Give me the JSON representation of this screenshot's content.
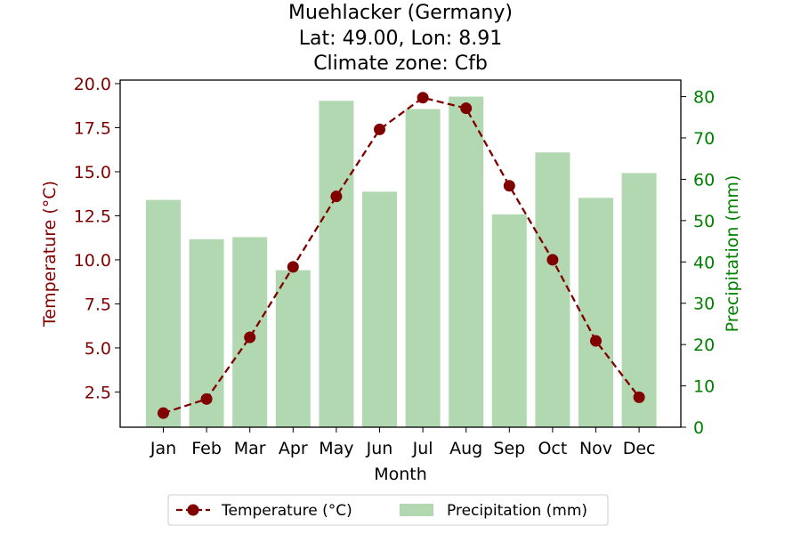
{
  "chart_data": {
    "type": "bar+line",
    "title_lines": [
      "Muehlacker (Germany)",
      "Lat: 49.00, Lon: 8.91",
      "Climate zone: Cfb"
    ],
    "xlabel": "Month",
    "categories": [
      "Jan",
      "Feb",
      "Mar",
      "Apr",
      "May",
      "Jun",
      "Jul",
      "Aug",
      "Sep",
      "Oct",
      "Nov",
      "Dec"
    ],
    "temperature": {
      "name": "Temperature (°C)",
      "axis_label": "Temperature (°C)",
      "color": "#800000",
      "values": [
        1.3,
        2.1,
        5.6,
        9.6,
        13.6,
        17.4,
        19.2,
        18.6,
        14.2,
        10.0,
        5.4,
        2.2
      ],
      "ylim": [
        0.5,
        20.2
      ],
      "ticks": [
        2.5,
        5.0,
        7.5,
        10.0,
        12.5,
        15.0,
        17.5,
        20.0
      ],
      "tick_labels": [
        "2.5",
        "5.0",
        "7.5",
        "10.0",
        "12.5",
        "15.0",
        "17.5",
        "20.0"
      ]
    },
    "precipitation": {
      "name": "Precipitation (mm)",
      "axis_label": "Precipitation (mm)",
      "color": "#008000",
      "bar_color": "#b2d8b2",
      "values": [
        55,
        45.5,
        46,
        38,
        79,
        57,
        77,
        80,
        51.5,
        66.5,
        55.5,
        61.5
      ],
      "ylim": [
        0,
        84
      ],
      "ticks": [
        0,
        10,
        20,
        30,
        40,
        50,
        60,
        70,
        80
      ],
      "tick_labels": [
        "0",
        "10",
        "20",
        "30",
        "40",
        "50",
        "60",
        "70",
        "80"
      ]
    },
    "grid": false,
    "legend": {
      "placement": "bottom-center",
      "entries": [
        "Temperature (°C)",
        "Precipitation (mm)"
      ]
    }
  }
}
